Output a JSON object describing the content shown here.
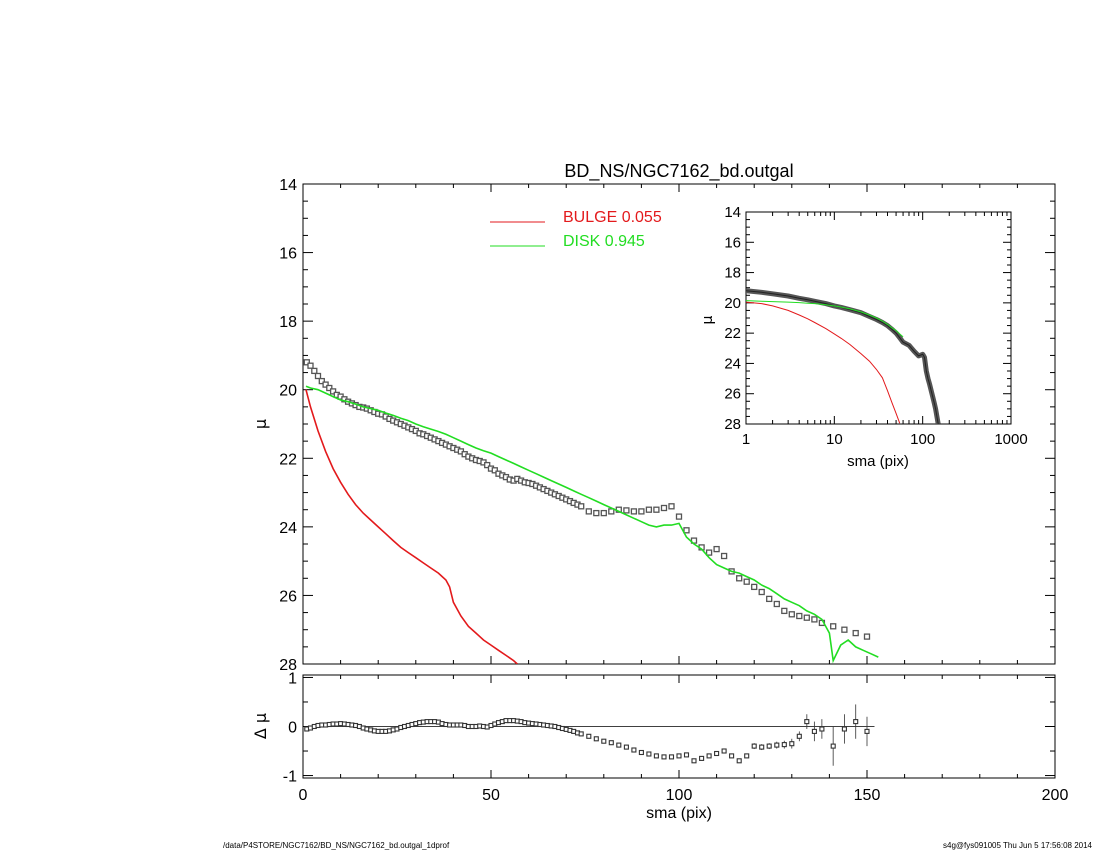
{
  "title": "BD_NS/NGC7162_bd.outgal",
  "footer_left": "/data/P4STORE/NGC7162/BD_NS/NGC7162_bd.outgal_1dprof",
  "footer_right": "s4g@fys091005  Thu Jun  5 17:56:08 2014",
  "colors": {
    "bulge": "#e31a1c",
    "disk": "#22dd22",
    "data": "#555555",
    "axis": "#000000"
  },
  "chart_data": [
    {
      "panel": "main",
      "type": "line",
      "title": "BD_NS/NGC7162_bd.outgal",
      "xlabel": "",
      "ylabel": "μ",
      "xlim": [
        0,
        200
      ],
      "ylim": [
        28,
        14
      ],
      "x_ticks": [
        0,
        50,
        100,
        150,
        200
      ],
      "y_ticks": [
        14,
        16,
        18,
        20,
        22,
        24,
        26,
        28
      ],
      "legend": [
        {
          "name": "BULGE",
          "value": "0.055",
          "label": "BULGE  0.055",
          "color": "#e31a1c"
        },
        {
          "name": "DISK",
          "value": "0.945",
          "label": "DISK  0.945",
          "color": "#22dd22"
        }
      ],
      "legend_position": "top-center",
      "series": [
        {
          "name": "data",
          "style": "squares",
          "x": [
            1,
            2,
            3,
            4,
            5,
            6,
            7,
            8,
            9,
            10,
            11,
            12,
            13,
            14,
            15,
            16,
            17,
            18,
            19,
            20,
            21,
            22,
            23,
            24,
            25,
            26,
            27,
            28,
            29,
            30,
            31,
            32,
            33,
            34,
            35,
            36,
            37,
            38,
            39,
            40,
            41,
            42,
            43,
            44,
            45,
            46,
            47,
            48,
            49,
            50,
            51,
            52,
            53,
            54,
            55,
            56,
            57,
            58,
            59,
            60,
            61,
            62,
            63,
            64,
            65,
            66,
            67,
            68,
            69,
            70,
            71,
            72,
            73,
            74,
            76,
            78,
            80,
            82,
            84,
            86,
            88,
            90,
            92,
            94,
            96,
            98,
            100,
            102,
            104,
            106,
            108,
            110,
            112,
            114,
            116,
            118,
            120,
            122,
            124,
            126,
            128,
            130,
            132,
            134,
            136,
            138,
            141,
            144,
            147,
            150
          ],
          "y": [
            19.2,
            19.3,
            19.45,
            19.6,
            19.75,
            19.85,
            19.95,
            20.05,
            20.15,
            20.2,
            20.28,
            20.35,
            20.4,
            20.45,
            20.5,
            20.52,
            20.55,
            20.6,
            20.65,
            20.7,
            20.72,
            20.78,
            20.85,
            20.9,
            20.95,
            21.0,
            21.05,
            21.1,
            21.15,
            21.2,
            21.27,
            21.3,
            21.35,
            21.4,
            21.45,
            21.5,
            21.55,
            21.6,
            21.65,
            21.7,
            21.75,
            21.8,
            21.88,
            21.95,
            22.0,
            22.05,
            22.08,
            22.12,
            22.2,
            22.3,
            22.35,
            22.45,
            22.5,
            22.55,
            22.62,
            22.65,
            22.6,
            22.65,
            22.7,
            22.72,
            22.75,
            22.8,
            22.85,
            22.9,
            22.95,
            23.0,
            23.05,
            23.1,
            23.15,
            23.2,
            23.25,
            23.3,
            23.35,
            23.4,
            23.55,
            23.6,
            23.6,
            23.55,
            23.5,
            23.52,
            23.55,
            23.55,
            23.5,
            23.5,
            23.45,
            23.4,
            23.7,
            24.1,
            24.4,
            24.6,
            24.75,
            24.65,
            24.85,
            25.3,
            25.5,
            25.6,
            25.75,
            25.9,
            26.1,
            26.25,
            26.45,
            26.55,
            26.6,
            26.65,
            26.7,
            26.8,
            26.9,
            27.0,
            27.1,
            27.2
          ],
          "note": ""
        },
        {
          "name": "BULGE",
          "style": "line",
          "color": "#e31a1c",
          "x": [
            0.8,
            2,
            4,
            6,
            8,
            10,
            12,
            14,
            16,
            18,
            20,
            22,
            24,
            26,
            28,
            30,
            32,
            34,
            36,
            38,
            39,
            40,
            42,
            44,
            46,
            48,
            50,
            52,
            54,
            56,
            57
          ],
          "y": [
            20.0,
            20.5,
            21.2,
            21.8,
            22.3,
            22.7,
            23.05,
            23.35,
            23.6,
            23.8,
            24.0,
            24.2,
            24.4,
            24.6,
            24.75,
            24.9,
            25.05,
            25.2,
            25.35,
            25.55,
            25.75,
            26.2,
            26.6,
            26.9,
            27.1,
            27.3,
            27.45,
            27.6,
            27.75,
            27.9,
            28.0
          ]
        },
        {
          "name": "DISK",
          "style": "line",
          "color": "#22dd22",
          "x": [
            0.8,
            2,
            4,
            6,
            8,
            10,
            12,
            14,
            16,
            18,
            20,
            22,
            24,
            26,
            28,
            30,
            32,
            34,
            36,
            38,
            40,
            42,
            44,
            46,
            48,
            50,
            52,
            54,
            56,
            58,
            60,
            62,
            64,
            66,
            68,
            70,
            72,
            74,
            76,
            78,
            80,
            82,
            84,
            86,
            88,
            90,
            92,
            94,
            96,
            98,
            100,
            102,
            104,
            106,
            108,
            110,
            112,
            114,
            116,
            118,
            120,
            122,
            124,
            126,
            128,
            130,
            132,
            134,
            136,
            138,
            140,
            141,
            143,
            145,
            147,
            149,
            151,
            153
          ],
          "y": [
            19.9,
            19.95,
            20.0,
            20.1,
            20.2,
            20.3,
            20.35,
            20.42,
            20.5,
            20.55,
            20.6,
            20.68,
            20.75,
            20.83,
            20.9,
            21.0,
            21.08,
            21.15,
            21.22,
            21.3,
            21.4,
            21.5,
            21.6,
            21.7,
            21.78,
            21.85,
            21.95,
            22.05,
            22.15,
            22.25,
            22.35,
            22.45,
            22.55,
            22.65,
            22.75,
            22.85,
            22.95,
            23.05,
            23.15,
            23.25,
            23.35,
            23.45,
            23.55,
            23.65,
            23.75,
            23.85,
            23.95,
            24.0,
            23.95,
            23.95,
            23.9,
            24.3,
            24.5,
            24.65,
            24.9,
            25.1,
            25.2,
            25.3,
            25.35,
            25.45,
            25.55,
            25.7,
            25.8,
            25.95,
            26.1,
            26.2,
            26.3,
            26.45,
            26.55,
            26.7,
            27.1,
            27.9,
            27.45,
            27.3,
            27.5,
            27.6,
            27.7,
            27.8
          ]
        }
      ]
    },
    {
      "panel": "residual",
      "type": "scatter",
      "xlabel": "sma (pix)",
      "ylabel": "Δ μ",
      "xlim": [
        0,
        200
      ],
      "ylim": [
        -1,
        1
      ],
      "x_ticks": [
        0,
        50,
        100,
        150,
        200
      ],
      "y_ticks": [
        -1,
        0,
        1
      ],
      "series": [
        {
          "name": "residual",
          "x": [
            1,
            2,
            3,
            4,
            5,
            6,
            7,
            8,
            9,
            10,
            11,
            12,
            13,
            14,
            15,
            16,
            17,
            18,
            19,
            20,
            21,
            22,
            23,
            24,
            25,
            26,
            27,
            28,
            29,
            30,
            31,
            32,
            33,
            34,
            35,
            36,
            37,
            38,
            39,
            40,
            41,
            42,
            43,
            44,
            45,
            46,
            47,
            48,
            49,
            50,
            51,
            52,
            53,
            54,
            55,
            56,
            57,
            58,
            59,
            60,
            61,
            62,
            63,
            64,
            65,
            66,
            67,
            68,
            69,
            70,
            71,
            72,
            73,
            74,
            76,
            78,
            80,
            82,
            84,
            86,
            88,
            90,
            92,
            94,
            96,
            98,
            100,
            102,
            104,
            106,
            108,
            110,
            112,
            114,
            116,
            118,
            120,
            122,
            124,
            126,
            128,
            130,
            132,
            134,
            136,
            138,
            141,
            144,
            147,
            150
          ],
          "y": [
            -0.05,
            -0.03,
            0.0,
            0.02,
            0.03,
            0.03,
            0.04,
            0.05,
            0.05,
            0.06,
            0.05,
            0.04,
            0.03,
            0.02,
            0.0,
            -0.03,
            -0.05,
            -0.07,
            -0.09,
            -0.1,
            -0.1,
            -0.1,
            -0.09,
            -0.07,
            -0.05,
            -0.02,
            0.0,
            0.02,
            0.04,
            0.06,
            0.08,
            0.09,
            0.1,
            0.1,
            0.1,
            0.09,
            0.06,
            0.04,
            0.03,
            0.03,
            0.03,
            0.03,
            0.02,
            0.0,
            0.0,
            0.0,
            0.01,
            0.0,
            -0.01,
            0.02,
            0.05,
            0.08,
            0.1,
            0.12,
            0.12,
            0.12,
            0.11,
            0.1,
            0.08,
            0.07,
            0.06,
            0.05,
            0.04,
            0.03,
            0.02,
            0.01,
            0.0,
            -0.02,
            -0.04,
            -0.06,
            -0.08,
            -0.1,
            -0.13,
            -0.15,
            -0.2,
            -0.25,
            -0.3,
            -0.33,
            -0.38,
            -0.42,
            -0.48,
            -0.53,
            -0.56,
            -0.6,
            -0.62,
            -0.62,
            -0.6,
            -0.58,
            -0.7,
            -0.65,
            -0.6,
            -0.55,
            -0.5,
            -0.6,
            -0.7,
            -0.6,
            -0.4,
            -0.42,
            -0.4,
            -0.38,
            -0.37,
            -0.35,
            -0.2,
            0.1,
            -0.1,
            -0.05,
            -0.4,
            -0.05,
            0.1,
            -0.1
          ],
          "errors": [
            0,
            0,
            0,
            0,
            0,
            0,
            0,
            0,
            0,
            0,
            0,
            0,
            0,
            0,
            0,
            0,
            0,
            0,
            0,
            0,
            0,
            0,
            0,
            0,
            0,
            0,
            0,
            0,
            0,
            0,
            0,
            0,
            0,
            0,
            0,
            0,
            0,
            0,
            0,
            0,
            0,
            0,
            0,
            0,
            0,
            0,
            0,
            0,
            0,
            0,
            0,
            0,
            0,
            0,
            0,
            0,
            0,
            0,
            0,
            0,
            0,
            0,
            0,
            0,
            0,
            0,
            0,
            0,
            0,
            0,
            0,
            0,
            0,
            0,
            0,
            0,
            0,
            0,
            0,
            0,
            0,
            0,
            0,
            0,
            0,
            0,
            0,
            0,
            0,
            0,
            0,
            0,
            0,
            0,
            0,
            0,
            0.06,
            0.06,
            0.06,
            0.07,
            0.08,
            0.1,
            0.1,
            0.15,
            0.2,
            0.2,
            0.4,
            0.3,
            0.35,
            0.3
          ]
        }
      ]
    },
    {
      "panel": "inset",
      "type": "line",
      "xlabel": "sma (pix)",
      "ylabel": "μ",
      "xscale": "log",
      "xlim": [
        1,
        1000
      ],
      "ylim": [
        28,
        14
      ],
      "x_ticks": [
        1,
        10,
        100,
        1000
      ],
      "y_ticks": [
        14,
        16,
        18,
        20,
        22,
        24,
        26,
        28
      ],
      "series": [
        {
          "name": "data",
          "x": [
            1,
            1.5,
            2,
            3,
            4,
            5,
            6,
            8,
            10,
            12,
            15,
            20,
            25,
            30,
            35,
            40,
            45,
            50,
            55,
            60,
            70,
            80,
            90,
            100,
            105,
            110,
            115,
            120,
            125,
            130,
            135,
            140,
            145,
            150
          ],
          "y": [
            19.2,
            19.3,
            19.4,
            19.55,
            19.7,
            19.8,
            19.9,
            20.05,
            20.2,
            20.3,
            20.45,
            20.65,
            20.9,
            21.1,
            21.3,
            21.5,
            21.75,
            22.0,
            22.3,
            22.6,
            22.8,
            23.2,
            23.5,
            23.4,
            23.6,
            24.5,
            25.0,
            25.4,
            25.8,
            26.2,
            26.6,
            27.0,
            27.5,
            28.0
          ]
        },
        {
          "name": "BULGE",
          "color": "#e31a1c",
          "x": [
            1,
            1.5,
            2,
            3,
            4,
            5,
            6,
            8,
            10,
            12,
            15,
            20,
            25,
            30,
            35,
            40,
            45,
            50,
            55
          ],
          "y": [
            19.95,
            20.05,
            20.2,
            20.5,
            20.8,
            21.05,
            21.3,
            21.7,
            22.05,
            22.35,
            22.75,
            23.35,
            23.85,
            24.4,
            24.95,
            25.8,
            26.6,
            27.3,
            27.95
          ]
        },
        {
          "name": "DISK",
          "color": "#22dd22",
          "x": [
            1,
            1.5,
            2,
            3,
            4,
            5,
            6,
            8,
            10,
            12,
            15,
            20,
            25,
            30,
            35,
            40,
            45,
            50,
            55,
            60
          ],
          "y": [
            19.85,
            19.9,
            19.92,
            19.95,
            19.98,
            20.02,
            20.05,
            20.12,
            20.2,
            20.28,
            20.4,
            20.6,
            20.8,
            21.0,
            21.2,
            21.42,
            21.65,
            21.82,
            22.05,
            22.25
          ]
        }
      ]
    }
  ]
}
